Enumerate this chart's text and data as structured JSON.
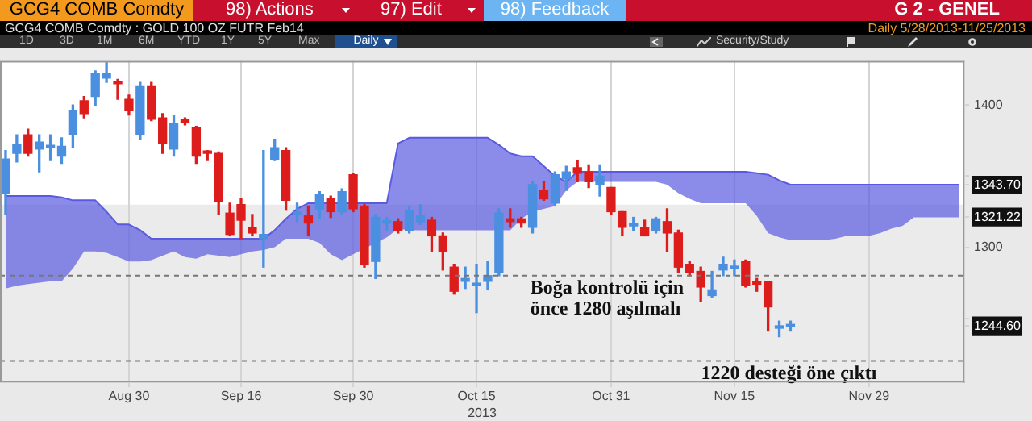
{
  "chart_data": {
    "type": "candlestick",
    "title": "GCG4 COMB Comdty : GOLD 100 OZ FUTR Feb14",
    "subtitle": "Daily 5/28/2013-11/25/2013",
    "xlabel": "2013",
    "categories": [
      null,
      null,
      null,
      null,
      null,
      null,
      null,
      null,
      null,
      null,
      null,
      "Aug 30",
      null,
      null,
      null,
      null,
      null,
      null,
      null,
      null,
      null,
      "Sep 16",
      null,
      null,
      null,
      null,
      null,
      null,
      null,
      null,
      null,
      "Sep 30",
      null,
      null,
      null,
      null,
      null,
      null,
      null,
      null,
      null,
      null,
      "Oct 15",
      null,
      null,
      null,
      null,
      null,
      null,
      null,
      null,
      null,
      null,
      null,
      "Oct 31",
      null,
      null,
      null,
      null,
      null,
      null,
      null,
      null,
      null,
      null,
      "Nov 15",
      null,
      null,
      null,
      null,
      null,
      null,
      null,
      null,
      null,
      null,
      null,
      "Nov 29",
      null,
      null,
      null,
      null,
      null,
      null,
      null,
      null
    ],
    "ohlc": [
      [
        1338,
        1368,
        1323,
        1362
      ],
      [
        1366,
        1379,
        1360,
        1372
      ],
      [
        1379,
        1383,
        1364,
        1366
      ],
      [
        1369,
        1379,
        1353,
        1374
      ],
      [
        1370,
        1379,
        1361,
        1371
      ],
      [
        1364,
        1377,
        1359,
        1371
      ],
      [
        1379,
        1400,
        1370,
        1396
      ],
      [
        1403,
        1406,
        1391,
        1394
      ],
      [
        1406,
        1424,
        1400,
        1422
      ],
      [
        1419,
        1430,
        1416,
        1422
      ],
      [
        1416,
        1418,
        1404,
        1415
      ],
      [
        1404,
        1407,
        1393,
        1396
      ],
      [
        1379,
        1416,
        1376,
        1413
      ],
      [
        1413,
        1416,
        1389,
        1390
      ],
      [
        1391,
        1394,
        1366,
        1373
      ],
      [
        1369,
        1393,
        1364,
        1387
      ],
      [
        1389,
        1391,
        1386,
        1388
      ],
      [
        1384,
        1385,
        1359,
        1364
      ],
      [
        1367,
        1368,
        1361,
        1366
      ],
      [
        1366,
        1367,
        1323,
        1332
      ],
      [
        1324,
        1331,
        1308,
        1309
      ],
      [
        1330,
        1334,
        1306,
        1319
      ],
      [
        1314,
        1323,
        1308,
        1310
      ],
      [
        1306,
        1368,
        1286,
        1309
      ],
      [
        1362,
        1376,
        1361,
        1370
      ],
      [
        1368,
        1370,
        1326,
        1333
      ],
      [
        1323,
        1331,
        1318,
        1324
      ],
      [
        1322,
        1329,
        1308,
        1317
      ],
      [
        1327,
        1339,
        1320,
        1337
      ],
      [
        1334,
        1336,
        1321,
        1325
      ],
      [
        1325,
        1341,
        1323,
        1339
      ],
      [
        1351,
        1352,
        1325,
        1327
      ],
      [
        1329,
        1330,
        1286,
        1288
      ],
      [
        1290,
        1323,
        1278,
        1321
      ],
      [
        1317,
        1321,
        1312,
        1318
      ],
      [
        1318,
        1320,
        1310,
        1312
      ],
      [
        1312,
        1329,
        1310,
        1326
      ],
      [
        1318,
        1330,
        1316,
        1322
      ],
      [
        1319,
        1321,
        1297,
        1308
      ],
      [
        1308,
        1310,
        1284,
        1297
      ],
      [
        1286,
        1288,
        1267,
        1269
      ],
      [
        1276,
        1286,
        1271,
        1278
      ],
      [
        1273,
        1288,
        1254,
        1274
      ],
      [
        1276,
        1290,
        1270,
        1280
      ],
      [
        1282,
        1327,
        1280,
        1324
      ],
      [
        1320,
        1327,
        1314,
        1318
      ],
      [
        1320,
        1321,
        1314,
        1317
      ],
      [
        1314,
        1346,
        1310,
        1344
      ],
      [
        1340,
        1346,
        1333,
        1334
      ],
      [
        1331,
        1353,
        1329,
        1351
      ],
      [
        1348,
        1357,
        1340,
        1353
      ],
      [
        1356,
        1361,
        1346,
        1352
      ],
      [
        1353,
        1358,
        1342,
        1346
      ],
      [
        1344,
        1358,
        1336,
        1350
      ],
      [
        1342,
        1342,
        1323,
        1325
      ],
      [
        1325,
        1325,
        1308,
        1314
      ],
      [
        1315,
        1321,
        1312,
        1316
      ],
      [
        1314,
        1319,
        1308,
        1308
      ],
      [
        1312,
        1321,
        1310,
        1320
      ],
      [
        1318,
        1327,
        1297,
        1310
      ],
      [
        1310,
        1312,
        1282,
        1286
      ],
      [
        1288,
        1290,
        1280,
        1282
      ],
      [
        1283,
        1286,
        1262,
        1272
      ],
      [
        1266,
        1283,
        1265,
        1270
      ],
      [
        1284,
        1293,
        1280,
        1288
      ],
      [
        1285,
        1291,
        1280,
        1286
      ],
      [
        1290,
        1291,
        1272,
        1273
      ],
      [
        1275,
        1278,
        1269,
        1274
      ],
      [
        1276,
        1276,
        1241,
        1258
      ],
      [
        1243,
        1248,
        1237,
        1244
      ],
      [
        1244,
        1248,
        1241,
        1244.6
      ],
      null,
      null,
      null,
      null,
      null,
      null,
      null,
      null,
      null,
      null,
      null,
      null,
      null,
      null,
      null
    ],
    "colors": [
      "#4a8fe0",
      "#4a8fe0",
      "#dd1c1c",
      "#4a8fe0",
      "#4a8fe0",
      "#4a8fe0",
      "#4a8fe0",
      "#dd1c1c",
      "#4a8fe0",
      "#4a8fe0",
      "#dd1c1c",
      "#dd1c1c",
      "#4a8fe0",
      "#dd1c1c",
      "#dd1c1c",
      "#4a8fe0",
      "#dd1c1c",
      "#dd1c1c",
      "#dd1c1c",
      "#dd1c1c",
      "#dd1c1c",
      "#dd1c1c",
      "#dd1c1c",
      "#4a8fe0",
      "#4a8fe0",
      "#dd1c1c",
      "#4a8fe0",
      "#dd1c1c",
      "#4a8fe0",
      "#dd1c1c",
      "#4a8fe0",
      "#dd1c1c",
      "#dd1c1c",
      "#4a8fe0",
      "#4a8fe0",
      "#dd1c1c",
      "#4a8fe0",
      "#4a8fe0",
      "#dd1c1c",
      "#dd1c1c",
      "#dd1c1c",
      "#4a8fe0",
      "#4a8fe0",
      "#4a8fe0",
      "#4a8fe0",
      "#dd1c1c",
      "#dd1c1c",
      "#4a8fe0",
      "#dd1c1c",
      "#4a8fe0",
      "#4a8fe0",
      "#dd1c1c",
      "#dd1c1c",
      "#4a8fe0",
      "#dd1c1c",
      "#dd1c1c",
      "#4a8fe0",
      "#dd1c1c",
      "#4a8fe0",
      "#dd1c1c",
      "#dd1c1c",
      "#dd1c1c",
      "#dd1c1c",
      "#4a8fe0",
      "#4a8fe0",
      "#4a8fe0",
      "#dd1c1c",
      "#dd1c1c",
      "#dd1c1c",
      "#4a8fe0",
      "#4a8fe0",
      null,
      null,
      null,
      null,
      null,
      null,
      null,
      null,
      null,
      null,
      null,
      null,
      null,
      null,
      null
    ],
    "series": [
      {
        "type": "line",
        "color": "#5a5ae0",
        "values": [
          1336,
          1336,
          1336,
          1336,
          1336,
          1335,
          1333,
          1333,
          1333,
          1325,
          1316,
          1316,
          1312,
          1306,
          1306,
          1306,
          1306,
          1306,
          1306,
          1306,
          1306,
          1306,
          1306,
          1306,
          1312,
          1320,
          1327,
          1331,
          1331,
          1331,
          1331,
          1331,
          1331,
          1331,
          1331,
          1373,
          1377,
          1377,
          1377,
          1377,
          1377,
          1377,
          1377,
          1377,
          1372,
          1366,
          1364,
          1364,
          1357,
          1350,
          1346,
          1353,
          1353,
          1353,
          1353,
          1353,
          1353,
          1353,
          1353,
          1353,
          1353,
          1353,
          1353,
          1353,
          1353,
          1353,
          1353,
          1352,
          1351,
          1347,
          1344,
          1344,
          1344,
          1344,
          1344,
          1344,
          1344,
          1344,
          1344,
          1344,
          1344,
          1344,
          1344,
          1344,
          1344,
          1344
        ],
        "upper": [
          1336,
          1336,
          1336,
          1336,
          1336,
          1335,
          1333,
          1333,
          1333,
          1325,
          1316,
          1316,
          1312,
          1306,
          1306,
          1306,
          1306,
          1306,
          1306,
          1306,
          1306,
          1306,
          1306,
          1306,
          1312,
          1320,
          1327,
          1331,
          1331,
          1331,
          1331,
          1331,
          1331,
          1331,
          1331,
          1373,
          1377,
          1377,
          1377,
          1377,
          1377,
          1377,
          1377,
          1377,
          1372,
          1366,
          1364,
          1364,
          1357,
          1350,
          1346,
          1353,
          1353,
          1353,
          1353,
          1353,
          1353,
          1353,
          1353,
          1353,
          1353,
          1353,
          1353,
          1353,
          1353,
          1353,
          1353,
          1352,
          1351,
          1347,
          1344,
          1344,
          1344,
          1344,
          1344,
          1344,
          1344,
          1344,
          1344,
          1344,
          1344,
          1344,
          1344,
          1344,
          1344,
          1344
        ],
        "lower": [
          1271,
          1273,
          1274,
          1275,
          1276,
          1276,
          1285,
          1297,
          1297,
          1296,
          1293,
          1290,
          1290,
          1291,
          1294,
          1297,
          1293,
          1292,
          1295,
          1294,
          1293,
          1295,
          1297,
          1298,
          1300,
          1306,
          1306,
          1306,
          1303,
          1295,
          1291,
          1295,
          1299,
          1303,
          1307,
          1313,
          1312,
          1312,
          1312,
          1312,
          1312,
          1312,
          1312,
          1312,
          1312,
          1312,
          1320,
          1325,
          1327,
          1329,
          1340,
          1346,
          1346,
          1346,
          1346,
          1346,
          1346,
          1346,
          1346,
          1344,
          1338,
          1334,
          1331,
          1331,
          1331,
          1331,
          1331,
          1322,
          1310,
          1307,
          1305,
          1305,
          1305,
          1305,
          1306,
          1308,
          1308,
          1308,
          1310,
          1313,
          1315,
          1321,
          1321,
          1321,
          1321,
          1321
        ]
      }
    ],
    "ylim": [
      1205,
      1431
    ],
    "yticks": [
      {
        "value": 1244.6,
        "label": "1244.60"
      },
      {
        "value": 1250,
        "label": null
      },
      1300,
      {
        "value": 1321.22,
        "label": "1321.22"
      },
      {
        "value": 1343.7,
        "label": "1343.70"
      },
      {
        "value": 1350,
        "label": null
      },
      1400
    ],
    "grid": "x",
    "bands": [
      {
        "axis": "y",
        "from": 1205,
        "to": 1330,
        "color": "#ebebeb"
      }
    ],
    "ref_lines": [
      {
        "axis": "y",
        "value": 1280,
        "label": "Boğa kontrolü için önce 1280 aşılmalı",
        "color": "#777777",
        "line_style": "dashed"
      },
      {
        "axis": "y",
        "value": 1220,
        "label": "1220 desteği öne çıktı",
        "color": "#777777",
        "line_style": "dashed"
      }
    ],
    "annotations": [
      "GCG4 COMB Comdty",
      "98) Actions",
      "97) Edit",
      "98) Feedback",
      "G 2 - GENEL",
      "1D",
      "3D",
      "1M",
      "6M",
      "YTD",
      "1Y",
      "5Y",
      "Max",
      "Daily",
      "Security/Study"
    ]
  }
}
